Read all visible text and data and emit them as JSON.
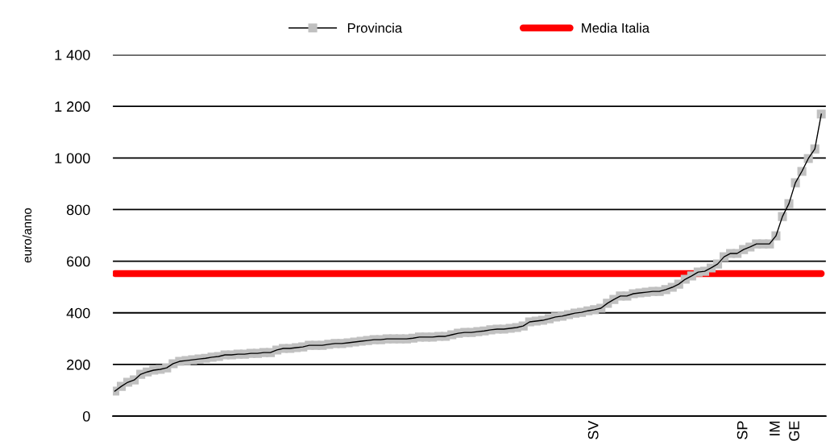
{
  "chart_data": {
    "type": "line",
    "ylabel": "euro/anno",
    "categories": [
      null,
      null,
      null,
      null,
      null,
      null,
      null,
      null,
      null,
      null,
      null,
      null,
      null,
      null,
      null,
      null,
      null,
      null,
      null,
      null,
      null,
      null,
      null,
      null,
      null,
      null,
      null,
      null,
      null,
      null,
      null,
      null,
      null,
      null,
      null,
      null,
      null,
      null,
      null,
      null,
      null,
      null,
      null,
      null,
      null,
      null,
      null,
      null,
      null,
      null,
      null,
      null,
      null,
      null,
      null,
      null,
      null,
      null,
      null,
      null,
      null,
      null,
      null,
      null,
      null,
      null,
      null,
      null,
      null,
      null,
      null,
      null,
      null,
      null,
      "SV",
      null,
      null,
      null,
      null,
      null,
      null,
      null,
      null,
      null,
      null,
      null,
      null,
      null,
      null,
      null,
      null,
      null,
      null,
      null,
      null,
      null,
      null,
      "SP",
      null,
      null,
      null,
      null,
      "IM",
      null,
      null,
      "GE",
      null,
      null,
      null,
      null
    ],
    "series": [
      {
        "name": "Provincia",
        "color": "#c0c0c0",
        "marker": "square",
        "values": [
          97,
          115,
          131,
          140,
          162,
          171,
          178,
          181,
          187,
          203,
          212,
          215,
          218,
          221,
          224,
          228,
          231,
          237,
          237,
          240,
          240,
          243,
          243,
          246,
          246,
          256,
          262,
          262,
          265,
          268,
          274,
          274,
          274,
          278,
          281,
          281,
          284,
          287,
          290,
          293,
          296,
          296,
          299,
          299,
          299,
          299,
          302,
          306,
          306,
          306,
          309,
          309,
          315,
          321,
          324,
          324,
          327,
          330,
          334,
          337,
          337,
          340,
          343,
          349,
          365,
          368,
          371,
          377,
          384,
          387,
          393,
          399,
          402,
          408,
          412,
          418,
          437,
          452,
          465,
          465,
          474,
          477,
          480,
          483,
          483,
          490,
          499,
          511,
          530,
          543,
          558,
          561,
          574,
          589,
          617,
          630,
          630,
          645,
          655,
          667,
          667,
          667,
          698,
          773,
          823,
          904,
          948,
          998,
          1035,
          1170
        ]
      },
      {
        "name": "Media Italia",
        "color": "#ff0000",
        "marker": "none",
        "values": [
          552,
          552,
          552,
          552,
          552,
          552,
          552,
          552,
          552,
          552,
          552,
          552,
          552,
          552,
          552,
          552,
          552,
          552,
          552,
          552,
          552,
          552,
          552,
          552,
          552,
          552,
          552,
          552,
          552,
          552,
          552,
          552,
          552,
          552,
          552,
          552,
          552,
          552,
          552,
          552,
          552,
          552,
          552,
          552,
          552,
          552,
          552,
          552,
          552,
          552,
          552,
          552,
          552,
          552,
          552,
          552,
          552,
          552,
          552,
          552,
          552,
          552,
          552,
          552,
          552,
          552,
          552,
          552,
          552,
          552,
          552,
          552,
          552,
          552,
          552,
          552,
          552,
          552,
          552,
          552,
          552,
          552,
          552,
          552,
          552,
          552,
          552,
          552,
          552,
          552,
          552,
          552,
          552,
          552,
          552,
          552,
          552,
          552,
          552,
          552,
          552,
          552,
          552,
          552,
          552,
          552,
          552,
          552,
          552,
          552
        ]
      }
    ],
    "ylim": [
      0,
      1400
    ],
    "yticks": [
      0,
      200,
      400,
      600,
      800,
      {
        "value": 1000,
        "label": "1 000"
      },
      {
        "value": 1200,
        "label": "1 200"
      },
      {
        "value": 1400,
        "label": "1 400"
      }
    ],
    "grid": "y",
    "legend": "top"
  }
}
